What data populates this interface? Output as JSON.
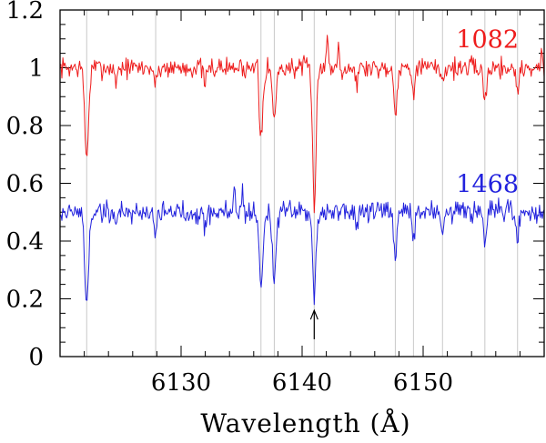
{
  "chart_data": {
    "type": "line",
    "title": "",
    "xlabel": "Wavelength (Å)",
    "ylabel": "",
    "xlim": [
      6120.0,
      6160.0
    ],
    "ylim": [
      0,
      1.2
    ],
    "x_ticks": [
      6130,
      6140,
      6150
    ],
    "x_tick_labels": [
      "6130",
      "6140",
      "6150"
    ],
    "y_ticks": [
      0,
      0.2,
      0.4,
      0.6,
      0.8,
      1,
      1.2
    ],
    "y_tick_labels": [
      "0",
      "0.2",
      "0.4",
      "0.6",
      "0.8",
      "1",
      "1.2"
    ],
    "x_minor_step": 2,
    "y_minor_step": 0.05,
    "grid": false,
    "reference_lines": [
      6122.2,
      6127.9,
      6136.6,
      6137.7,
      6141.0,
      6147.7,
      6149.2,
      6151.6,
      6155.1,
      6157.8
    ],
    "arrow": {
      "x": 6141.0,
      "y_from": 0.06,
      "y_to": 0.16
    },
    "series": [
      {
        "name": "1082",
        "color": "#ee1c1c",
        "baseline": 1.0,
        "noise": 0.022,
        "seed": 7,
        "lines": [
          {
            "x": 6122.2,
            "depth": 0.31,
            "width": 0.16
          },
          {
            "x": 6124.6,
            "depth": 0.05,
            "width": 0.1
          },
          {
            "x": 6127.9,
            "depth": 0.06,
            "width": 0.12
          },
          {
            "x": 6132.0,
            "depth": 0.06,
            "width": 0.12
          },
          {
            "x": 6136.6,
            "depth": 0.22,
            "width": 0.16
          },
          {
            "x": 6137.7,
            "depth": 0.18,
            "width": 0.15
          },
          {
            "x": 6141.0,
            "depth": 0.48,
            "width": 0.14
          },
          {
            "x": 6144.5,
            "depth": 0.05,
            "width": 0.12
          },
          {
            "x": 6147.7,
            "depth": 0.15,
            "width": 0.13
          },
          {
            "x": 6149.2,
            "depth": 0.07,
            "width": 0.12
          },
          {
            "x": 6151.6,
            "depth": 0.04,
            "width": 0.12
          },
          {
            "x": 6155.1,
            "depth": 0.12,
            "width": 0.13
          },
          {
            "x": 6157.8,
            "depth": 0.08,
            "width": 0.12
          }
        ],
        "spikes": [
          {
            "x": 6136.3,
            "h": 0.08
          },
          {
            "x": 6142.1,
            "h": 0.12
          },
          {
            "x": 6143.0,
            "h": 0.09
          },
          {
            "x": 6159.8,
            "h": 0.04
          }
        ]
      },
      {
        "name": "1468",
        "color": "#2222dd",
        "baseline": 0.5,
        "noise": 0.024,
        "seed": 19,
        "lines": [
          {
            "x": 6122.2,
            "depth": 0.32,
            "width": 0.16
          },
          {
            "x": 6124.6,
            "depth": 0.04,
            "width": 0.1
          },
          {
            "x": 6127.9,
            "depth": 0.06,
            "width": 0.12
          },
          {
            "x": 6132.0,
            "depth": 0.05,
            "width": 0.12
          },
          {
            "x": 6136.6,
            "depth": 0.25,
            "width": 0.16
          },
          {
            "x": 6137.7,
            "depth": 0.23,
            "width": 0.15
          },
          {
            "x": 6141.0,
            "depth": 0.28,
            "width": 0.14
          },
          {
            "x": 6144.5,
            "depth": 0.04,
            "width": 0.12
          },
          {
            "x": 6147.7,
            "depth": 0.17,
            "width": 0.13
          },
          {
            "x": 6149.2,
            "depth": 0.08,
            "width": 0.12
          },
          {
            "x": 6151.6,
            "depth": 0.05,
            "width": 0.12
          },
          {
            "x": 6155.1,
            "depth": 0.12,
            "width": 0.13
          },
          {
            "x": 6157.8,
            "depth": 0.1,
            "width": 0.12
          }
        ],
        "spikes": [
          {
            "x": 6134.4,
            "h": 0.09
          },
          {
            "x": 6135.1,
            "h": 0.07
          }
        ]
      }
    ]
  }
}
